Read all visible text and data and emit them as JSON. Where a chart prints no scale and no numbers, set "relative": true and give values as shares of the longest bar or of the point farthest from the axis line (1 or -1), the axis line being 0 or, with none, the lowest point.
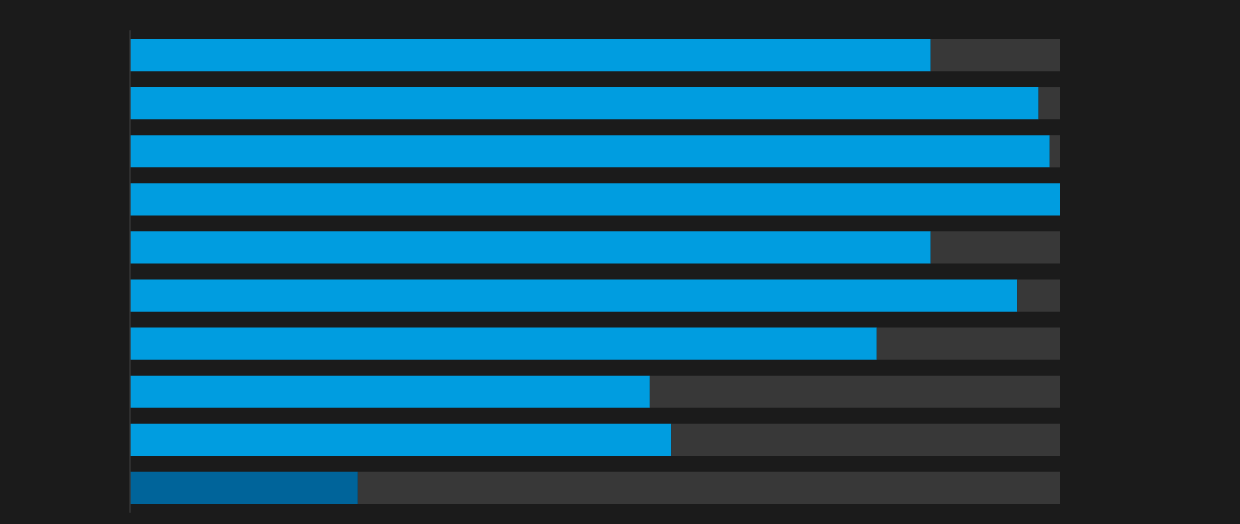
{
  "chart_data": {
    "type": "bar",
    "orientation": "horizontal",
    "stacked": true,
    "relative": true,
    "categories": [
      null,
      null,
      null,
      null,
      null,
      null,
      null,
      null,
      null,
      null
    ],
    "series": [
      {
        "colors": [
          "#009de0",
          "#009de0",
          "#009de0",
          "#009de0",
          "#009de0",
          "#009de0",
          "#009de0",
          "#009de0",
          "#009de0",
          "#00649a"
        ],
        "values": [
          0.861,
          0.977,
          0.989,
          1.0,
          0.861,
          0.954,
          0.803,
          0.559,
          0.582,
          0.245
        ]
      },
      {
        "color": "#383838",
        "values": [
          0.139,
          0.023,
          0.011,
          0,
          0.139,
          0.046,
          0.197,
          0.441,
          0.418,
          0.755
        ]
      }
    ],
    "grid": false,
    "legend": false
  }
}
